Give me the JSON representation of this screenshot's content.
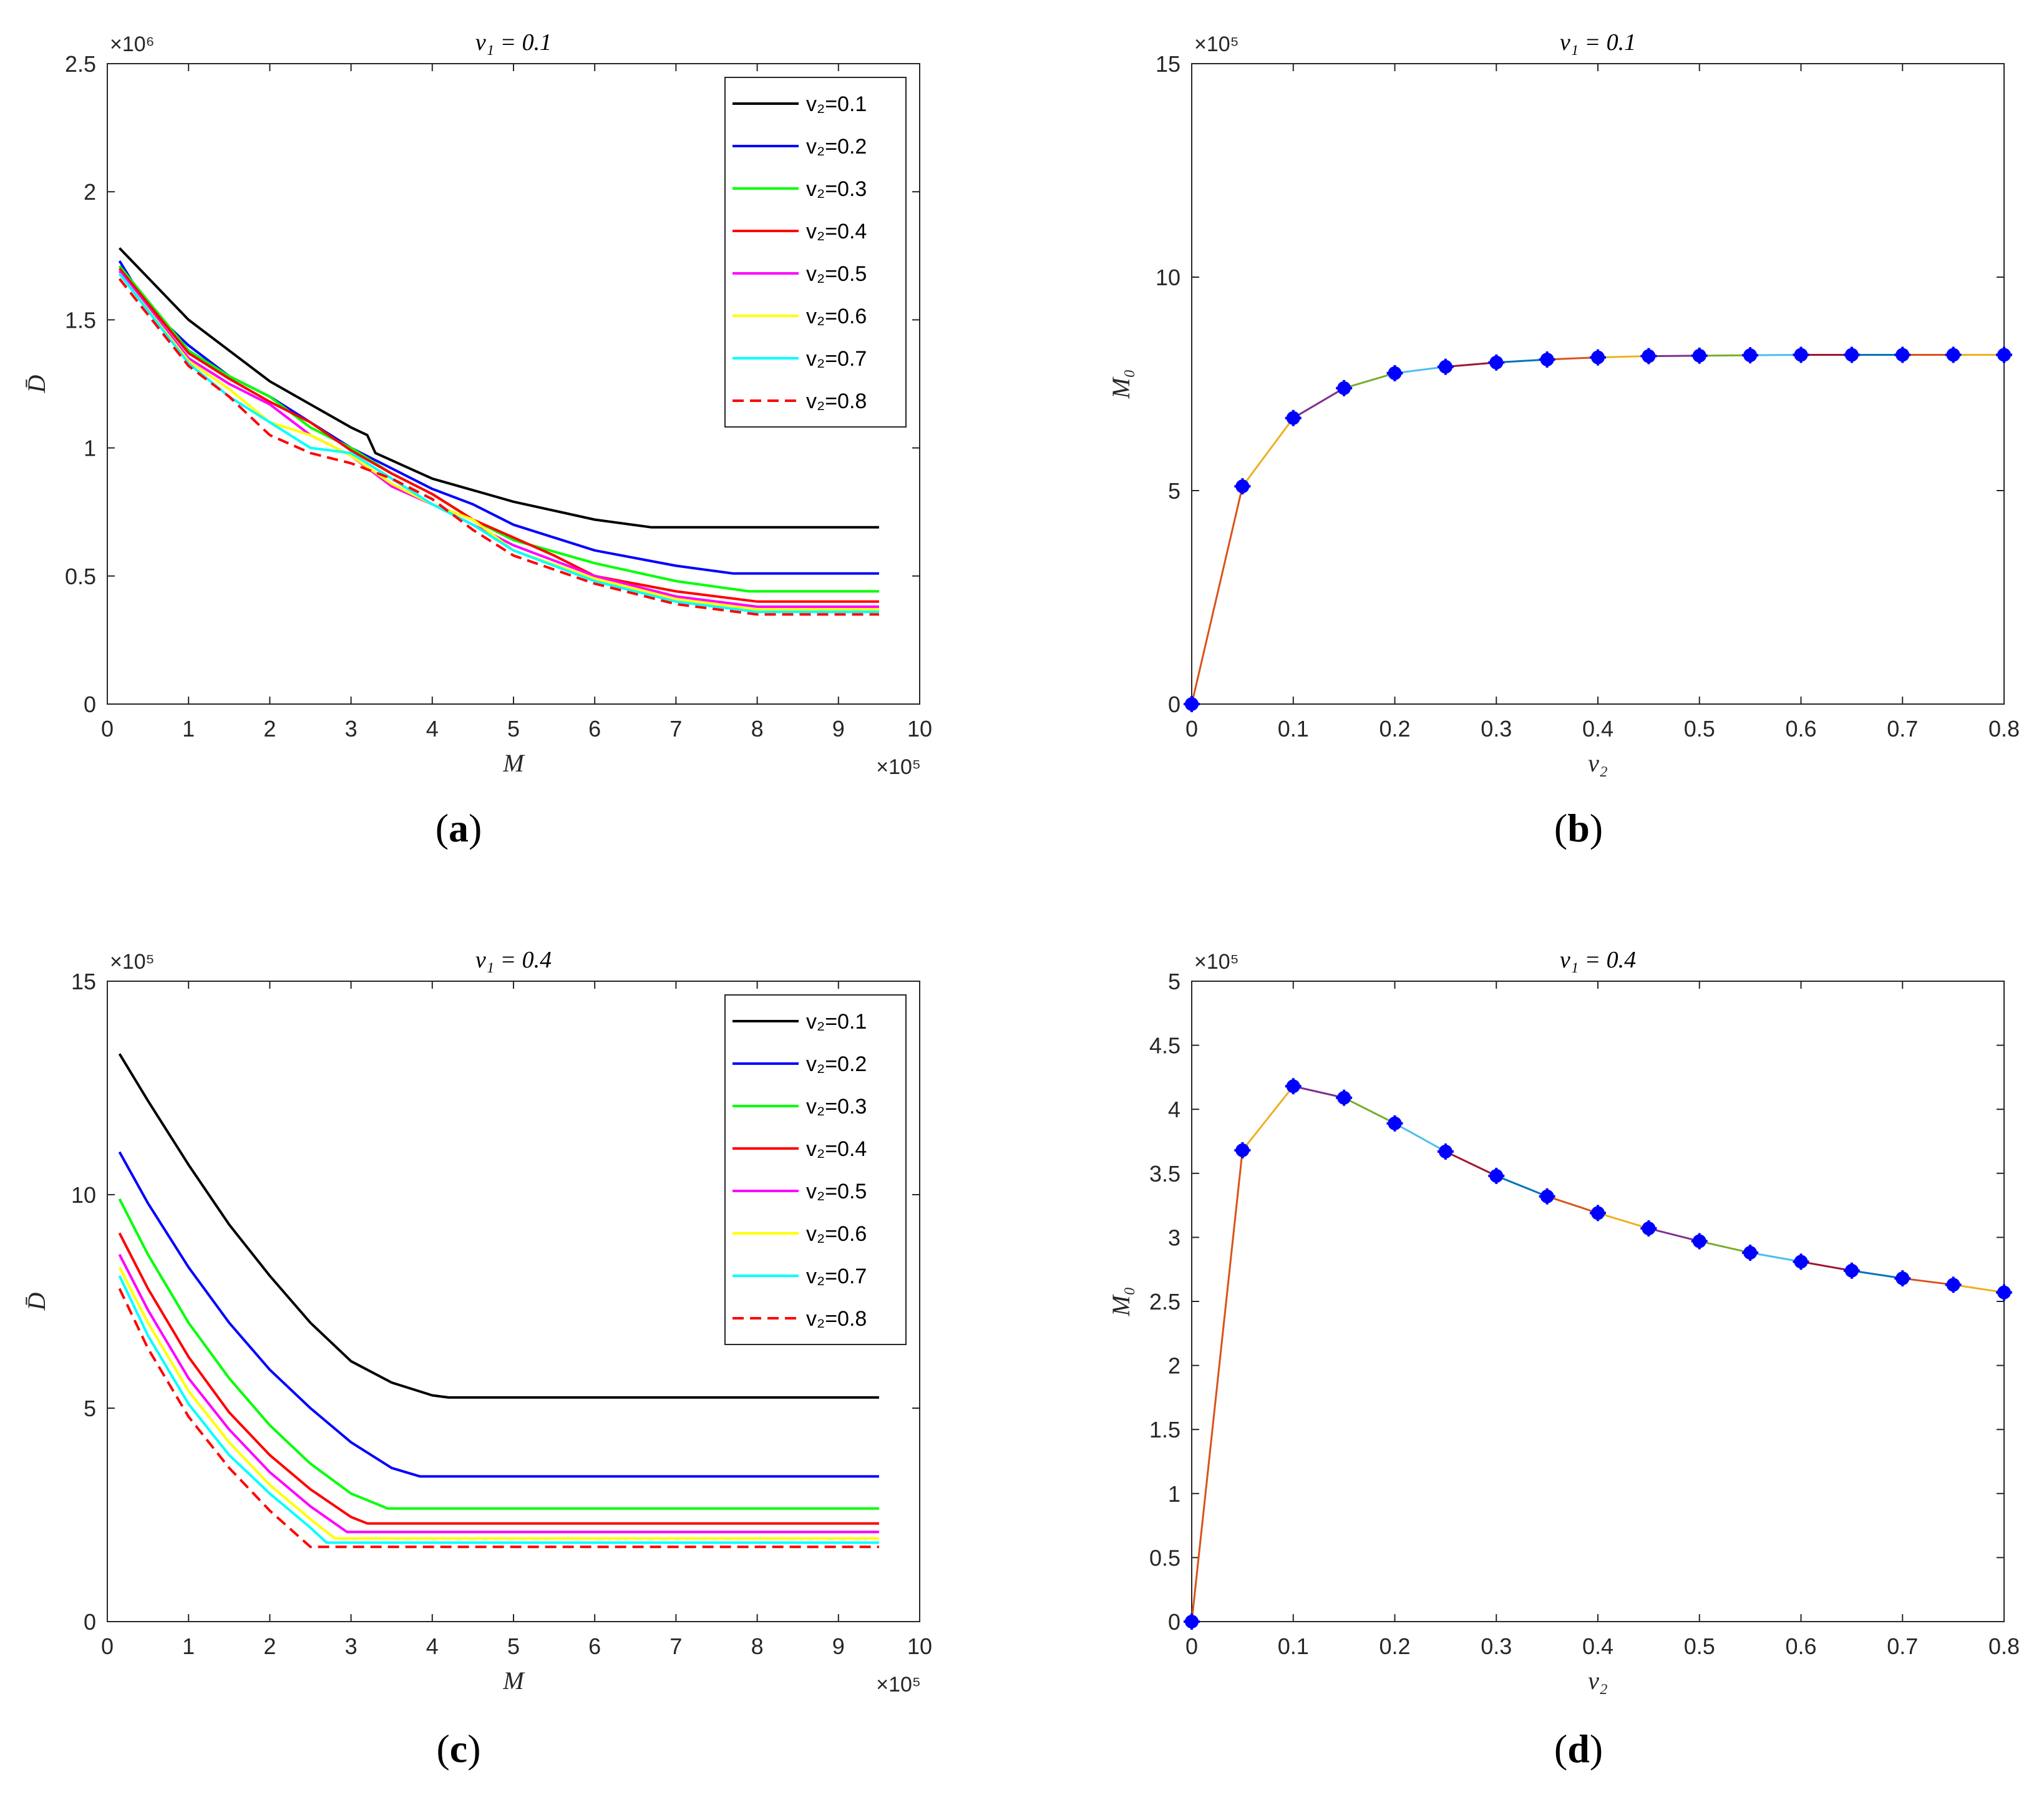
{
  "panels": [
    {
      "id": "a",
      "label": "a"
    },
    {
      "id": "b",
      "label": "b"
    },
    {
      "id": "c",
      "label": "c"
    },
    {
      "id": "d",
      "label": "d"
    }
  ],
  "chart_data": [
    {
      "id": "a",
      "type": "line",
      "title": "v₁ = 0.1",
      "xlabel": "M",
      "ylabel": "D̄",
      "xlim": [
        0,
        10
      ],
      "ylim": [
        0,
        2.5
      ],
      "x_ticks": [
        "0",
        "1",
        "2",
        "3",
        "4",
        "5",
        "6",
        "7",
        "8",
        "9",
        "10"
      ],
      "y_ticks": [
        "0",
        "0.5",
        "1",
        "1.5",
        "2",
        "2.5"
      ],
      "x_exponent": "×10⁵",
      "y_exponent": "×10⁶",
      "legend_position": "top-right",
      "series": [
        {
          "name": "v₂=0.1",
          "color": "#000000",
          "dash": false,
          "x": [
            0.15,
            1,
            2,
            3,
            3.2,
            3.3,
            4,
            5,
            6,
            6.7,
            9.5
          ],
          "y": [
            1.78,
            1.5,
            1.26,
            1.08,
            1.05,
            0.98,
            0.88,
            0.79,
            0.72,
            0.69,
            0.69
          ]
        },
        {
          "name": "v₂=0.2",
          "color": "#0000ff",
          "dash": false,
          "x": [
            0.15,
            0.5,
            1,
            1.5,
            2,
            2.5,
            3,
            3.5,
            4,
            4.5,
            5,
            6,
            7,
            7.7,
            9.5
          ],
          "y": [
            1.73,
            1.55,
            1.4,
            1.28,
            1.2,
            1.1,
            1.0,
            0.92,
            0.84,
            0.78,
            0.7,
            0.6,
            0.54,
            0.51,
            0.51
          ]
        },
        {
          "name": "v₂=0.3",
          "color": "#00ff00",
          "dash": false,
          "x": [
            0.15,
            1,
            1.5,
            2,
            2.5,
            3,
            3.5,
            4,
            4.5,
            5,
            6,
            7,
            7.9,
            9.5
          ],
          "y": [
            1.71,
            1.38,
            1.28,
            1.2,
            1.08,
            1.0,
            0.9,
            0.82,
            0.72,
            0.64,
            0.55,
            0.48,
            0.44,
            0.44
          ]
        },
        {
          "name": "v₂=0.4",
          "color": "#ff0000",
          "dash": false,
          "x": [
            0.15,
            1,
            1.5,
            2,
            2.5,
            3,
            3.5,
            4,
            4.5,
            5,
            5.5,
            6,
            7,
            8,
            9.5
          ],
          "y": [
            1.7,
            1.37,
            1.27,
            1.18,
            1.1,
            0.99,
            0.9,
            0.82,
            0.72,
            0.65,
            0.58,
            0.5,
            0.44,
            0.4,
            0.4
          ]
        },
        {
          "name": "v₂=0.5",
          "color": "#ff00ff",
          "dash": false,
          "x": [
            0.15,
            1,
            1.5,
            2,
            2.5,
            3,
            3.5,
            4,
            4.5,
            5,
            6,
            7,
            8,
            9.5
          ],
          "y": [
            1.69,
            1.35,
            1.25,
            1.17,
            1.05,
            0.97,
            0.85,
            0.78,
            0.7,
            0.62,
            0.5,
            0.42,
            0.38,
            0.38
          ]
        },
        {
          "name": "v₂=0.6",
          "color": "#ffff00",
          "dash": false,
          "x": [
            0.15,
            1,
            1.5,
            2,
            2.5,
            3,
            3.5,
            4,
            4.5,
            5,
            6,
            7,
            8,
            9.5
          ],
          "y": [
            1.68,
            1.34,
            1.23,
            1.1,
            1.05,
            0.97,
            0.86,
            0.78,
            0.72,
            0.6,
            0.49,
            0.41,
            0.37,
            0.37
          ]
        },
        {
          "name": "v₂=0.7",
          "color": "#00ffff",
          "dash": false,
          "x": [
            0.15,
            1,
            1.5,
            2,
            2.5,
            3,
            3.5,
            4,
            4.5,
            5,
            6,
            7,
            8,
            9.5
          ],
          "y": [
            1.68,
            1.33,
            1.2,
            1.1,
            1.0,
            0.98,
            0.88,
            0.78,
            0.7,
            0.6,
            0.48,
            0.4,
            0.36,
            0.36
          ]
        },
        {
          "name": "v₂=0.8",
          "color": "#ff0000",
          "dash": true,
          "x": [
            0.15,
            1,
            1.5,
            2,
            2.5,
            3,
            3.5,
            4,
            4.5,
            5,
            6,
            7,
            8,
            9.5
          ],
          "y": [
            1.66,
            1.32,
            1.2,
            1.05,
            0.98,
            0.94,
            0.88,
            0.8,
            0.68,
            0.58,
            0.47,
            0.39,
            0.35,
            0.35
          ]
        }
      ]
    },
    {
      "id": "b",
      "type": "line",
      "title": "v₁ = 0.1",
      "xlabel": "v₂",
      "ylabel": "M₀",
      "xlim": [
        0,
        0.8
      ],
      "ylim": [
        0,
        15
      ],
      "x_ticks": [
        "0",
        "0.1",
        "0.2",
        "0.3",
        "0.4",
        "0.5",
        "0.6",
        "0.7",
        "0.8"
      ],
      "y_ticks": [
        "0",
        "5",
        "10",
        "15"
      ],
      "y_exponent": "×10⁵",
      "x": [
        0,
        0.05,
        0.1,
        0.15,
        0.2,
        0.25,
        0.3,
        0.35,
        0.4,
        0.45,
        0.5,
        0.55,
        0.6,
        0.65,
        0.7,
        0.75,
        0.8
      ],
      "y": [
        0,
        5.1,
        6.7,
        7.4,
        7.75,
        7.9,
        8.0,
        8.07,
        8.12,
        8.15,
        8.16,
        8.17,
        8.18,
        8.18,
        8.18,
        8.18,
        8.18
      ],
      "segment_colors": [
        "#d95319",
        "#edb120",
        "#7e2f8e",
        "#77ac30",
        "#4dbeee",
        "#a2142f",
        "#0072bd",
        "#d95319",
        "#edb120",
        "#7e2f8e",
        "#77ac30",
        "#4dbeee",
        "#a2142f",
        "#0072bd",
        "#d95319",
        "#edb120"
      ],
      "marker_color": "#0000ff"
    },
    {
      "id": "c",
      "type": "line",
      "title": "v₁ = 0.4",
      "xlabel": "M",
      "ylabel": "D̄",
      "xlim": [
        0,
        10
      ],
      "ylim": [
        0,
        15
      ],
      "x_ticks": [
        "0",
        "1",
        "2",
        "3",
        "4",
        "5",
        "6",
        "7",
        "8",
        "9",
        "10"
      ],
      "y_ticks": [
        "0",
        "5",
        "10",
        "15"
      ],
      "x_exponent": "×10⁵",
      "y_exponent": "×10⁵",
      "legend_position": "top-right",
      "series": [
        {
          "name": "v₂=0.1",
          "color": "#000000",
          "dash": false,
          "x": [
            0.15,
            0.5,
            1,
            1.5,
            2,
            2.5,
            3,
            3.5,
            4,
            4.2,
            9.5
          ],
          "y": [
            13.3,
            12.2,
            10.7,
            9.3,
            8.1,
            7.0,
            6.1,
            5.6,
            5.3,
            5.25,
            5.25
          ]
        },
        {
          "name": "v₂=0.2",
          "color": "#0000ff",
          "dash": false,
          "x": [
            0.15,
            0.5,
            1,
            1.5,
            2,
            2.5,
            3,
            3.5,
            3.85,
            9.5
          ],
          "y": [
            11.0,
            9.8,
            8.3,
            7.0,
            5.9,
            5.0,
            4.2,
            3.6,
            3.4,
            3.4
          ]
        },
        {
          "name": "v₂=0.3",
          "color": "#00ff00",
          "dash": false,
          "x": [
            0.15,
            0.5,
            1,
            1.5,
            2,
            2.5,
            3,
            3.45,
            9.5
          ],
          "y": [
            9.9,
            8.6,
            7.0,
            5.7,
            4.6,
            3.7,
            3.0,
            2.65,
            2.65
          ]
        },
        {
          "name": "v₂=0.4",
          "color": "#ff0000",
          "dash": false,
          "x": [
            0.15,
            0.5,
            1,
            1.5,
            2,
            2.5,
            3,
            3.2,
            9.5
          ],
          "y": [
            9.1,
            7.8,
            6.2,
            4.9,
            3.9,
            3.1,
            2.45,
            2.3,
            2.3
          ]
        },
        {
          "name": "v₂=0.5",
          "color": "#ff00ff",
          "dash": false,
          "x": [
            0.15,
            0.5,
            1,
            1.5,
            2,
            2.5,
            2.95,
            9.5
          ],
          "y": [
            8.6,
            7.3,
            5.7,
            4.5,
            3.5,
            2.7,
            2.1,
            2.1
          ]
        },
        {
          "name": "v₂=0.6",
          "color": "#ffff00",
          "dash": false,
          "x": [
            0.15,
            0.5,
            1,
            1.5,
            2,
            2.5,
            2.8,
            9.5
          ],
          "y": [
            8.3,
            7.0,
            5.4,
            4.2,
            3.2,
            2.4,
            1.95,
            1.95
          ]
        },
        {
          "name": "v₂=0.7",
          "color": "#00ffff",
          "dash": false,
          "x": [
            0.15,
            0.5,
            1,
            1.5,
            2,
            2.5,
            2.7,
            9.5
          ],
          "y": [
            8.1,
            6.7,
            5.1,
            3.9,
            3.0,
            2.2,
            1.85,
            1.85
          ]
        },
        {
          "name": "v₂=0.8",
          "color": "#ff0000",
          "dash": true,
          "x": [
            0.15,
            0.5,
            1,
            1.5,
            2,
            2.5,
            9.5
          ],
          "y": [
            7.8,
            6.4,
            4.8,
            3.6,
            2.6,
            1.75,
            1.75
          ]
        }
      ]
    },
    {
      "id": "d",
      "type": "line",
      "title": "v₁ = 0.4",
      "xlabel": "v₂",
      "ylabel": "M₀",
      "xlim": [
        0,
        0.8
      ],
      "ylim": [
        0,
        5
      ],
      "x_ticks": [
        "0",
        "0.1",
        "0.2",
        "0.3",
        "0.4",
        "0.5",
        "0.6",
        "0.7",
        "0.8"
      ],
      "y_ticks": [
        "0",
        "0.5",
        "1",
        "1.5",
        "2",
        "2.5",
        "3",
        "3.5",
        "4",
        "4.5",
        "5"
      ],
      "y_exponent": "×10⁵",
      "x": [
        0,
        0.05,
        0.1,
        0.15,
        0.2,
        0.25,
        0.3,
        0.35,
        0.4,
        0.45,
        0.5,
        0.55,
        0.6,
        0.65,
        0.7,
        0.75,
        0.8
      ],
      "y": [
        0,
        3.68,
        4.18,
        4.09,
        3.89,
        3.67,
        3.48,
        3.32,
        3.19,
        3.07,
        2.97,
        2.88,
        2.81,
        2.74,
        2.68,
        2.63,
        2.57
      ],
      "segment_colors": [
        "#d95319",
        "#edb120",
        "#7e2f8e",
        "#77ac30",
        "#4dbeee",
        "#a2142f",
        "#0072bd",
        "#d95319",
        "#edb120",
        "#7e2f8e",
        "#77ac30",
        "#4dbeee",
        "#a2142f",
        "#0072bd",
        "#d95319",
        "#edb120"
      ],
      "marker_color": "#0000ff"
    }
  ]
}
